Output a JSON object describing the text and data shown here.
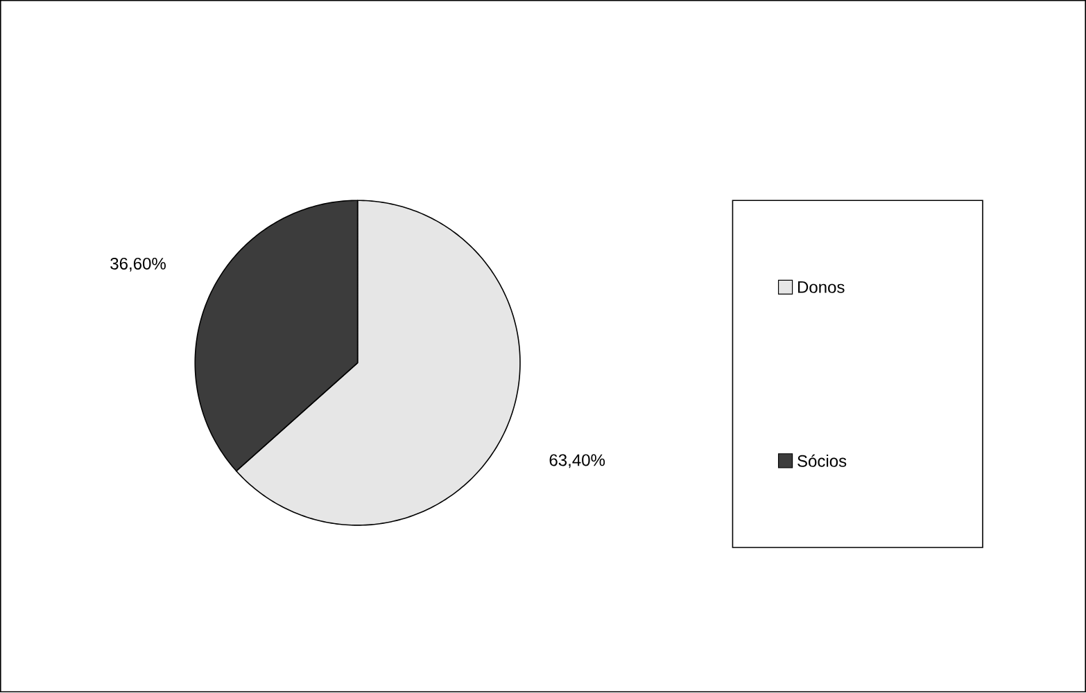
{
  "chart_data": {
    "type": "pie",
    "categories": [
      "Donos",
      "Sócios"
    ],
    "values": [
      63.4,
      36.6
    ],
    "colors": [
      "#e6e6e6",
      "#3c3c3c"
    ],
    "value_labels": [
      "63,40%",
      "36,60%"
    ],
    "legend": "right"
  }
}
